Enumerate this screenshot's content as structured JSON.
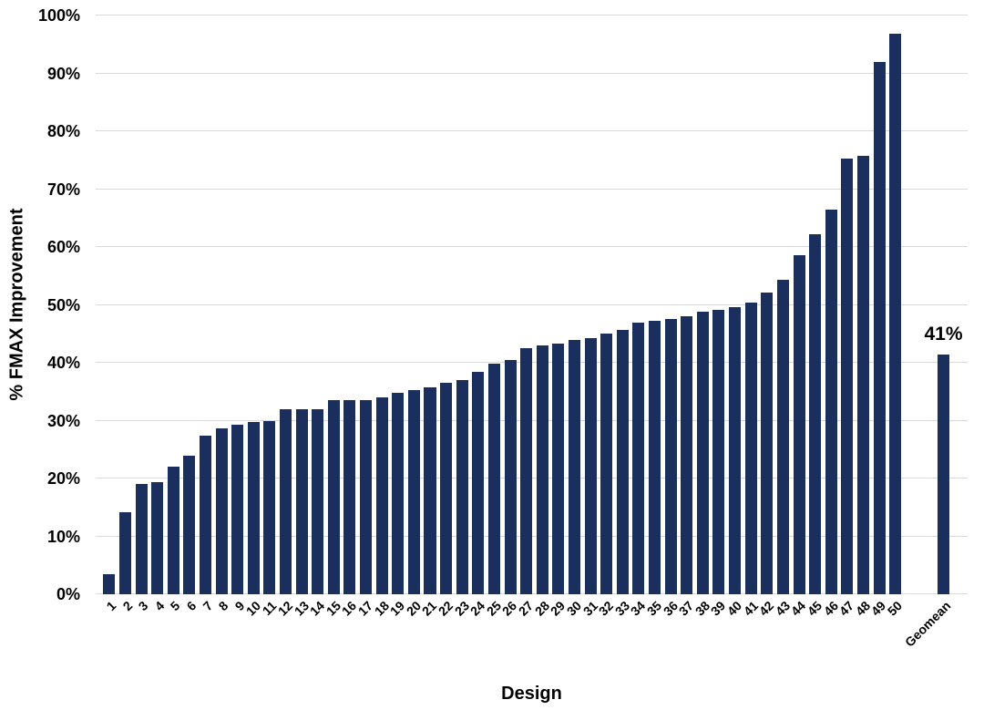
{
  "chart_data": {
    "type": "bar",
    "title": "",
    "xlabel": "Design",
    "ylabel": "% FMAX Improvement",
    "categories": [
      "1",
      "2",
      "3",
      "4",
      "5",
      "6",
      "7",
      "8",
      "9",
      "10",
      "11",
      "12",
      "13",
      "14",
      "15",
      "16",
      "17",
      "18",
      "19",
      "20",
      "21",
      "22",
      "23",
      "24",
      "25",
      "26",
      "27",
      "28",
      "29",
      "30",
      "31",
      "32",
      "33",
      "34",
      "35",
      "36",
      "37",
      "38",
      "39",
      "40",
      "41",
      "42",
      "43",
      "44",
      "45",
      "46",
      "47",
      "48",
      "49",
      "50"
    ],
    "values": [
      3.5,
      14.2,
      19.1,
      19.4,
      22.0,
      24.0,
      27.4,
      28.6,
      29.3,
      29.8,
      30.0,
      31.9,
      31.9,
      31.9,
      33.5,
      33.5,
      33.5,
      34.0,
      34.8,
      35.2,
      35.7,
      36.6,
      37.0,
      38.4,
      39.9,
      40.4,
      42.5,
      43.0,
      43.3,
      44.0,
      44.3,
      45.1,
      45.6,
      46.9,
      47.2,
      47.6,
      48.1,
      48.9,
      49.2,
      49.6,
      50.4,
      52.2,
      54.3,
      58.6,
      62.2,
      66.5,
      75.2,
      75.8,
      92.0,
      96.9
    ],
    "geomean": {
      "category": "Geomean",
      "value": 41.4,
      "data_label": "41%"
    },
    "ylim": [
      0,
      100
    ],
    "y_tick_step": 10,
    "y_tick_labels": [
      "0%",
      "10%",
      "20%",
      "30%",
      "40%",
      "50%",
      "60%",
      "70%",
      "80%",
      "90%",
      "100%"
    ],
    "grid": true,
    "legend": "none",
    "bar_color": "#1a2f5e",
    "gridline_color": "#d9d9d9",
    "text_color": "#000000",
    "gap_slots_before_geomean": 2
  }
}
